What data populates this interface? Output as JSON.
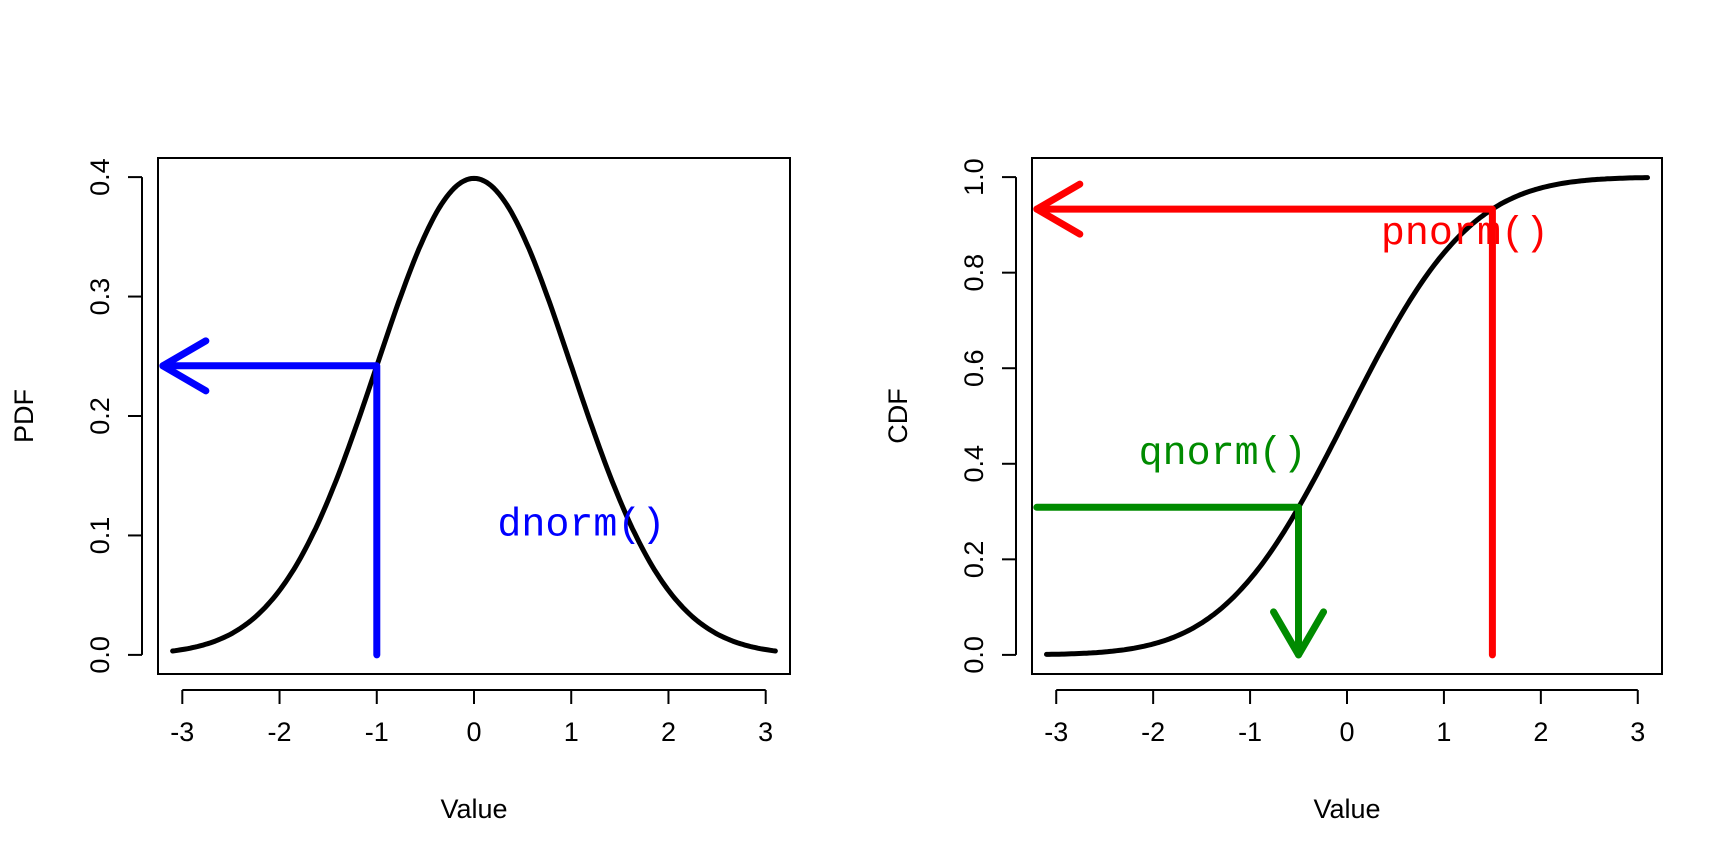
{
  "colors": {
    "dnorm": "#0000FF",
    "pnorm": "#FF0000",
    "qnorm": "#008B00",
    "curve": "#000000"
  },
  "chart_data": [
    {
      "type": "line",
      "title": "",
      "xlabel": "Value",
      "ylabel": "PDF",
      "xlim": [
        -3.25,
        3.25
      ],
      "ylim": [
        -0.016,
        0.416
      ],
      "xticks": [
        -3,
        -2,
        -1,
        0,
        1,
        2,
        3
      ],
      "xtick_labels": [
        "-3",
        "-2",
        "-1",
        "0",
        "1",
        "2",
        "3"
      ],
      "yticks": [
        0,
        0.1,
        0.2,
        0.3,
        0.4
      ],
      "ytick_labels": [
        "0.0",
        "0.1",
        "0.2",
        "0.3",
        "0.4"
      ],
      "grid": false,
      "legend": "none",
      "series": [
        {
          "function": "normal_pdf",
          "x_range": [
            -3.1,
            3.1
          ],
          "x": [
            -3.0,
            -2.5,
            -2.0,
            -1.5,
            -1.0,
            -0.5,
            0.0,
            0.5,
            1.0,
            1.5,
            2.0,
            2.5,
            3.0
          ],
          "y": [
            0.004,
            0.018,
            0.054,
            0.13,
            0.242,
            0.352,
            0.399,
            0.352,
            0.242,
            0.13,
            0.054,
            0.018,
            0.004
          ]
        }
      ],
      "annotations": [
        {
          "label": "dnorm()",
          "color_key": "dnorm",
          "label_at": [
            0.24,
            0.1
          ],
          "path": [
            [
              -1,
              0
            ],
            [
              -1,
              0.242
            ],
            [
              -3.2,
              0.242
            ]
          ],
          "arrow_head_at": [
            -3.2,
            0.242
          ],
          "arrow_direction": "left"
        }
      ]
    },
    {
      "type": "line",
      "title": "",
      "xlabel": "Value",
      "ylabel": "CDF",
      "xlim": [
        -3.25,
        3.25
      ],
      "ylim": [
        -0.04,
        1.04
      ],
      "xticks": [
        -3,
        -2,
        -1,
        0,
        1,
        2,
        3
      ],
      "xtick_labels": [
        "-3",
        "-2",
        "-1",
        "0",
        "1",
        "2",
        "3"
      ],
      "yticks": [
        0,
        0.2,
        0.4,
        0.6,
        0.8,
        1.0
      ],
      "ytick_labels": [
        "0.0",
        "0.2",
        "0.4",
        "0.6",
        "0.8",
        "1.0"
      ],
      "grid": false,
      "legend": "none",
      "series": [
        {
          "function": "normal_cdf",
          "x_range": [
            -3.1,
            3.1
          ],
          "x": [
            -3.0,
            -2.5,
            -2.0,
            -1.5,
            -1.0,
            -0.5,
            0.0,
            0.5,
            1.0,
            1.5,
            2.0,
            2.5,
            3.0
          ],
          "y": [
            0.001,
            0.006,
            0.023,
            0.067,
            0.159,
            0.309,
            0.5,
            0.691,
            0.841,
            0.933,
            0.977,
            0.994,
            0.999
          ]
        }
      ],
      "annotations": [
        {
          "label": "pnorm()",
          "color_key": "pnorm",
          "label_at": [
            0.35,
            0.86
          ],
          "path": [
            [
              1.5,
              0
            ],
            [
              1.5,
              0.933
            ],
            [
              -3.2,
              0.933
            ]
          ],
          "arrow_head_at": [
            -3.2,
            0.933
          ],
          "arrow_direction": "left"
        },
        {
          "label": "qnorm()",
          "color_key": "qnorm",
          "label_at": [
            -2.15,
            0.4
          ],
          "path": [
            [
              -3.2,
              0.309
            ],
            [
              -0.5,
              0.309
            ],
            [
              -0.5,
              0
            ]
          ],
          "arrow_head_at": [
            -0.5,
            0
          ],
          "arrow_direction": "down"
        }
      ]
    }
  ]
}
